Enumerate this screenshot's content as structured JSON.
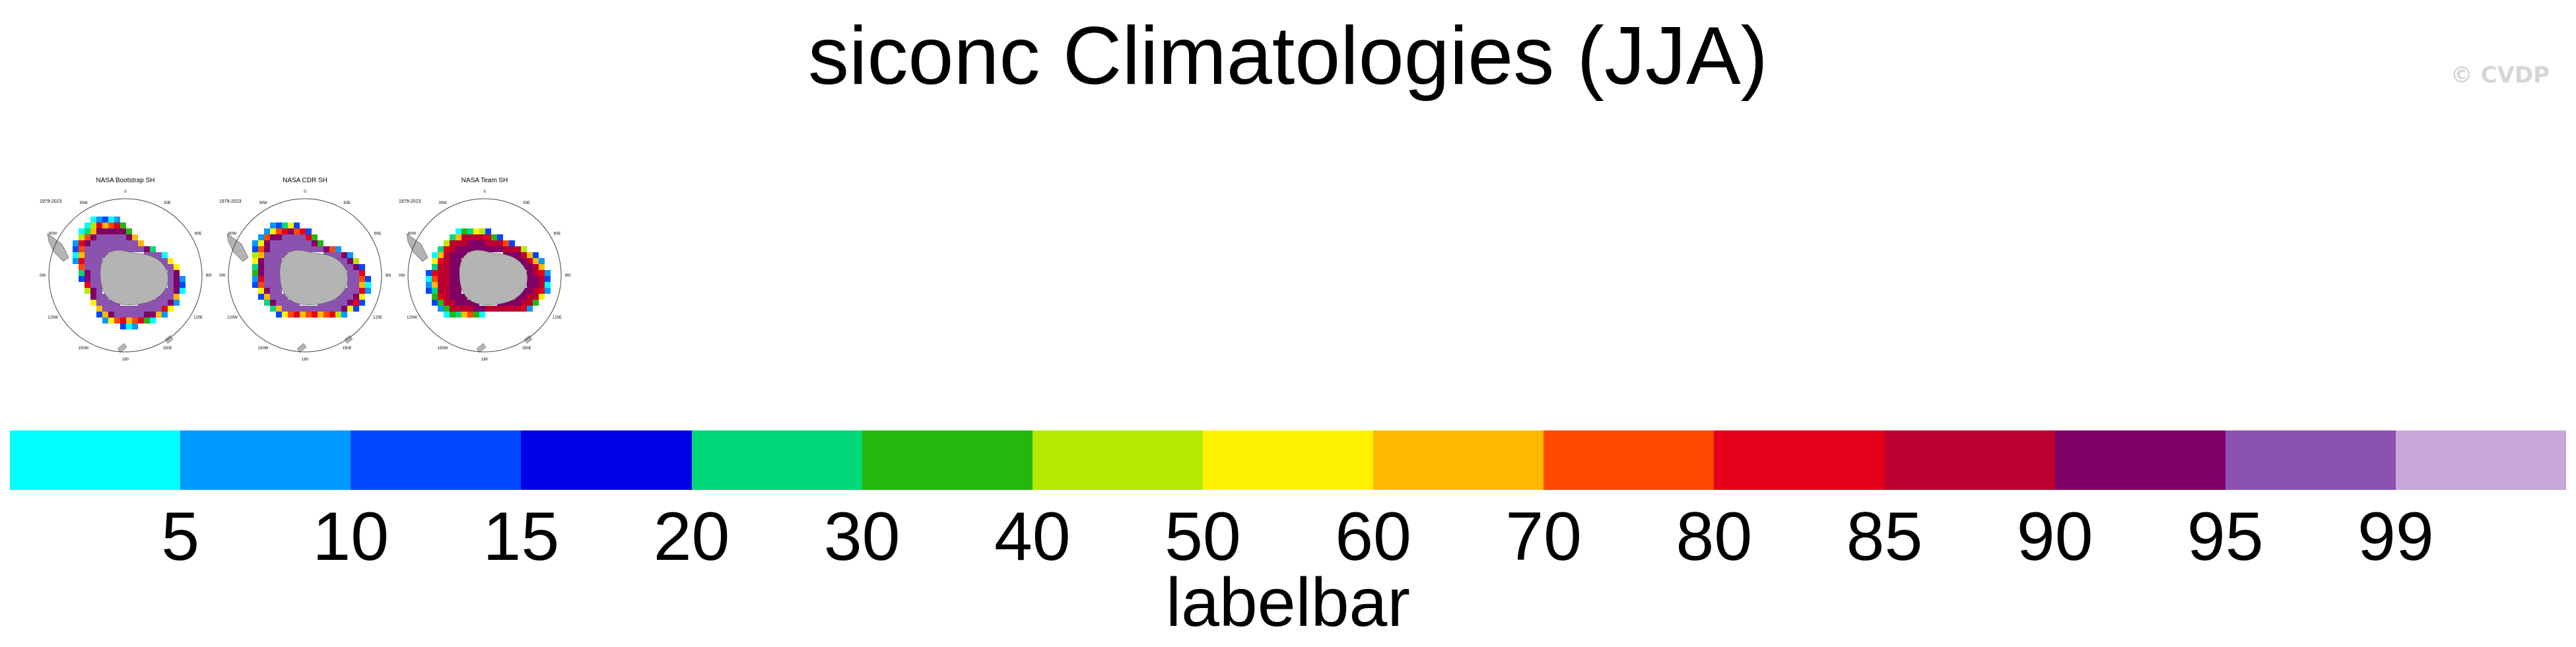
{
  "title": "siconc Climatologies (JJA)",
  "watermark": "© CVDP",
  "panels": [
    {
      "name": "NASA Bootstrap SH",
      "years": "1979-2023"
    },
    {
      "name": "NASA CDR SH",
      "years": "1979-2023"
    },
    {
      "name": "NASA Team SH",
      "years": "1979-2023"
    }
  ],
  "map_lon_labels": [
    "0",
    "30E",
    "60E",
    "90E",
    "120E",
    "150E",
    "180",
    "150W",
    "120W",
    "90W",
    "60W",
    "30W"
  ],
  "labelbar": {
    "title": "labelbar",
    "ticks": [
      "5",
      "10",
      "15",
      "20",
      "30",
      "40",
      "50",
      "60",
      "70",
      "80",
      "85",
      "90",
      "95",
      "99"
    ],
    "colors": [
      "#00ffff",
      "#0099ff",
      "#0048ff",
      "#0000e6",
      "#00d87a",
      "#25b710",
      "#b5e900",
      "#fff200",
      "#ffb900",
      "#ff4800",
      "#e6001a",
      "#bb0030",
      "#800066",
      "#8c52b0",
      "#c8a8d8"
    ]
  },
  "chart_data": {
    "type": "heatmap",
    "title": "siconc Climatologies (JJA)",
    "panels": [
      "NASA Bootstrap SH",
      "NASA CDR SH",
      "NASA Team SH"
    ],
    "period": "1979-2023",
    "levels": [
      5,
      10,
      15,
      20,
      30,
      40,
      50,
      60,
      70,
      80,
      85,
      90,
      95,
      99
    ],
    "colorbar_label": "labelbar",
    "projection": "south polar stereographic"
  }
}
